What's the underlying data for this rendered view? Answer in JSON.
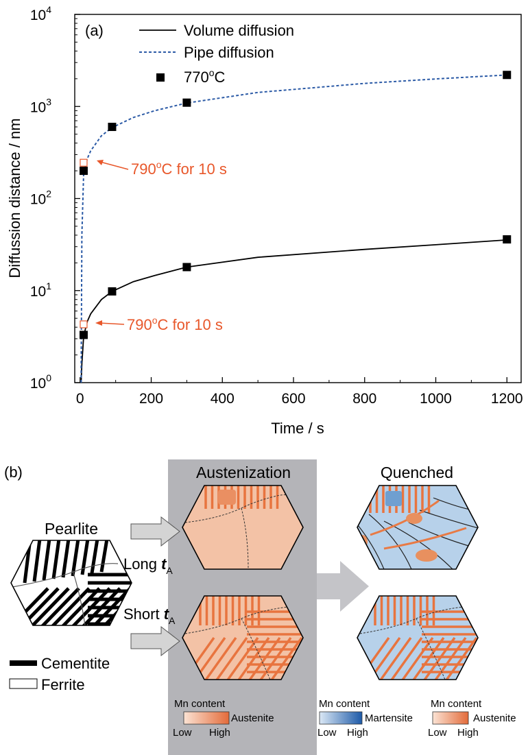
{
  "colors": {
    "volume": "#000000",
    "pipe": "#2b5aa6",
    "annotation": "#e8572a",
    "gray_panel": "#b4b4b8",
    "austenite_light": "#f3c2a6",
    "austenite_high": "#e36b3a",
    "martensite": "#b7d1ea",
    "martensite_high": "#1d5aa8"
  },
  "panel_a": {
    "label": "(a)",
    "xlabel": "Time / s",
    "ylabel": "Diffussion distance / nm",
    "legend": {
      "volume": "Volume diffusion",
      "pipe": "Pipe diffusion",
      "marker": "770°C"
    },
    "annotation": "790°C for 10 s"
  },
  "chart_data": {
    "type": "line",
    "yscale": "log",
    "xlim": [
      -15,
      1240
    ],
    "ylim": [
      1,
      10000
    ],
    "xticks": [
      0,
      200,
      400,
      600,
      800,
      1000,
      1200
    ],
    "yticks": [
      1,
      10,
      100,
      1000,
      10000
    ],
    "ytick_labels": [
      {
        "base": "10",
        "exp": "0"
      },
      {
        "base": "10",
        "exp": "1"
      },
      {
        "base": "10",
        "exp": "2"
      },
      {
        "base": "10",
        "exp": "3"
      },
      {
        "base": "10",
        "exp": "4"
      }
    ],
    "legend_position": "top",
    "series": [
      {
        "name": "Volume diffusion",
        "style": "solid",
        "x": [
          3,
          5,
          10,
          20,
          30,
          60,
          90,
          150,
          210,
          300,
          500,
          800,
          1000,
          1200
        ],
        "y": [
          1.0,
          1.6,
          3.2,
          4.6,
          5.6,
          8.0,
          9.8,
          12.5,
          14.6,
          18.0,
          23.0,
          28.0,
          31.5,
          35.5
        ]
      },
      {
        "name": "Pipe diffusion",
        "style": "dashed",
        "x": [
          3,
          5,
          10,
          20,
          30,
          60,
          90,
          150,
          210,
          300,
          500,
          800,
          1000,
          1200
        ],
        "y": [
          1.0,
          40,
          190,
          270,
          330,
          480,
          590,
          760,
          900,
          1090,
          1420,
          1780,
          1990,
          2200
        ]
      },
      {
        "name": "770°C",
        "style": "markers",
        "x": [
          10,
          90,
          300,
          1200,
          10,
          90,
          300,
          1200
        ],
        "y": [
          3.3,
          9.8,
          18,
          36,
          200,
          600,
          1100,
          2200
        ]
      }
    ],
    "open_markers_790C": [
      {
        "x": 10,
        "y": 4.3
      },
      {
        "x": 10,
        "y": 245
      }
    ]
  },
  "panel_b": {
    "label": "(b)",
    "pearlite": "Pearlite",
    "austenization": "Austenization",
    "quenched": "Quenched",
    "long_t": "Long t",
    "short_t": "Short t",
    "t_sub": "A",
    "cementite": "Cementite",
    "ferrite": "Ferrite",
    "mn_content": "Mn content",
    "austenite": "Austenite",
    "martensite": "Martensite",
    "low": "Low",
    "high": "High"
  }
}
